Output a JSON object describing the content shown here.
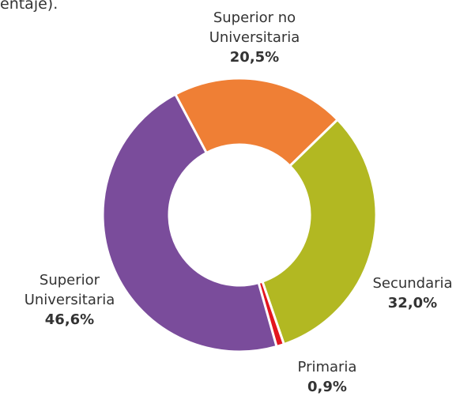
{
  "chart_data": {
    "type": "donut",
    "title": "entaje).",
    "categories": [
      "Superior no Universitaria",
      "Secundaria",
      "Primaria",
      "Superior Universitaria"
    ],
    "values": [
      20.5,
      32.0,
      0.9,
      46.6
    ],
    "value_labels": [
      "20,5%",
      "32,0%",
      "0,9%",
      "46,6%"
    ],
    "colors": [
      "#ef7f35",
      "#b2b822",
      "#e3161f",
      "#7a4c9b"
    ]
  }
}
